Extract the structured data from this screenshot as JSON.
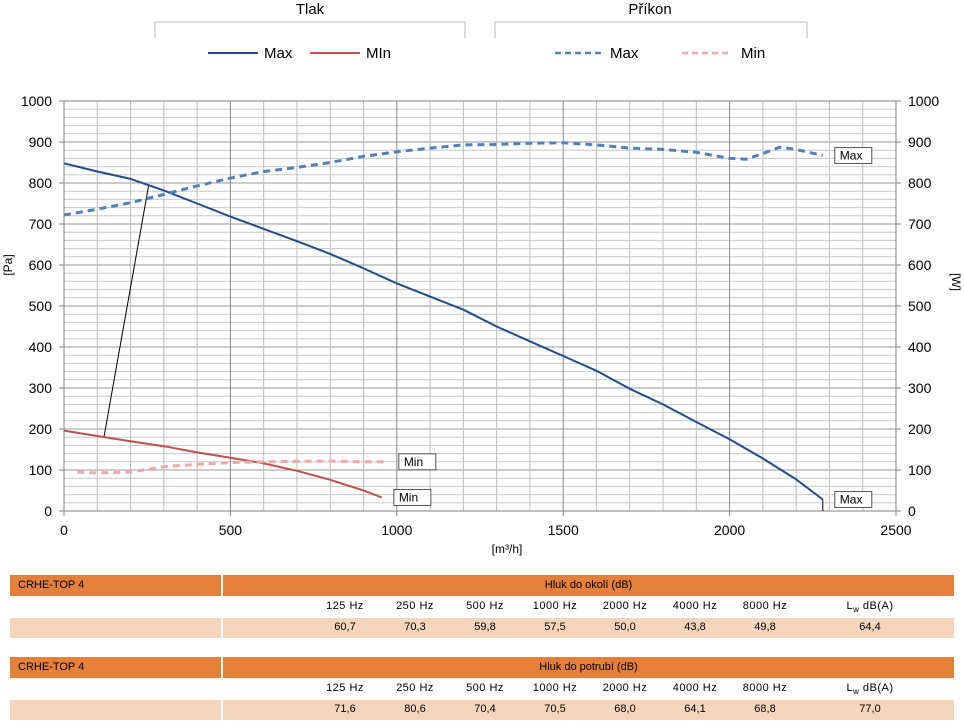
{
  "chart_data": {
    "type": "line",
    "legend_groups": [
      {
        "title": "Tlak",
        "items": [
          {
            "name": "Max",
            "color": "#1f4e8c",
            "style": "solid"
          },
          {
            "name": "MIn",
            "color": "#c0504d",
            "style": "solid"
          }
        ]
      },
      {
        "title": "Příkon",
        "items": [
          {
            "name": "Max",
            "color": "#4f81bd",
            "style": "dashed"
          },
          {
            "name": "Min",
            "color": "#f0a8a8",
            "style": "dashed"
          }
        ]
      }
    ],
    "xlabel": "[m³/h]",
    "ylabel_left": "[Pa]",
    "ylabel_right": "[W]",
    "xlim": [
      0,
      2500
    ],
    "ylim": [
      0,
      1000
    ],
    "x_ticks": [
      0,
      500,
      1000,
      1500,
      2000,
      2500
    ],
    "y_ticks": [
      0,
      100,
      200,
      300,
      400,
      500,
      600,
      700,
      800,
      900,
      1000
    ],
    "grid": true,
    "series": [
      {
        "group": "Tlak",
        "axis": "left",
        "color": "#1f4e8c",
        "dash": false,
        "label": "Max",
        "points": [
          [
            0,
            848
          ],
          [
            100,
            828
          ],
          [
            200,
            810
          ],
          [
            300,
            782
          ],
          [
            400,
            750
          ],
          [
            500,
            718
          ],
          [
            600,
            688
          ],
          [
            700,
            658
          ],
          [
            800,
            627
          ],
          [
            900,
            592
          ],
          [
            1000,
            555
          ],
          [
            1100,
            523
          ],
          [
            1200,
            491
          ],
          [
            1300,
            450
          ],
          [
            1400,
            414
          ],
          [
            1500,
            378
          ],
          [
            1600,
            342
          ],
          [
            1700,
            298
          ],
          [
            1800,
            260
          ],
          [
            1900,
            217
          ],
          [
            2000,
            175
          ],
          [
            2100,
            128
          ],
          [
            2200,
            77
          ],
          [
            2280,
            28
          ]
        ]
      },
      {
        "group": "Tlak",
        "axis": "left",
        "color": "#c0504d",
        "dash": false,
        "label": "Min",
        "points": [
          [
            0,
            196
          ],
          [
            100,
            183
          ],
          [
            200,
            170
          ],
          [
            300,
            158
          ],
          [
            400,
            143
          ],
          [
            500,
            130
          ],
          [
            600,
            116
          ],
          [
            700,
            98
          ],
          [
            800,
            76
          ],
          [
            900,
            50
          ],
          [
            955,
            33
          ]
        ]
      },
      {
        "group": "Příkon",
        "axis": "right",
        "color": "#4f81bd",
        "dash": true,
        "label": "Max",
        "points": [
          [
            0,
            722
          ],
          [
            100,
            736
          ],
          [
            200,
            752
          ],
          [
            300,
            772
          ],
          [
            400,
            793
          ],
          [
            500,
            812
          ],
          [
            600,
            828
          ],
          [
            700,
            838
          ],
          [
            800,
            850
          ],
          [
            900,
            865
          ],
          [
            1000,
            876
          ],
          [
            1100,
            885
          ],
          [
            1200,
            893
          ],
          [
            1300,
            894
          ],
          [
            1400,
            897
          ],
          [
            1500,
            898
          ],
          [
            1600,
            893
          ],
          [
            1700,
            885
          ],
          [
            1800,
            882
          ],
          [
            1900,
            875
          ],
          [
            2000,
            860
          ],
          [
            2050,
            858
          ],
          [
            2100,
            872
          ],
          [
            2150,
            887
          ],
          [
            2200,
            882
          ],
          [
            2280,
            867
          ]
        ]
      },
      {
        "group": "Příkon",
        "axis": "right",
        "color": "#f0a8a8",
        "dash": true,
        "label": "Min",
        "points": [
          [
            40,
            95
          ],
          [
            100,
            93
          ],
          [
            200,
            95
          ],
          [
            300,
            108
          ],
          [
            400,
            114
          ],
          [
            500,
            118
          ],
          [
            600,
            120
          ],
          [
            700,
            121
          ],
          [
            800,
            122
          ],
          [
            900,
            120
          ],
          [
            970,
            120
          ]
        ]
      }
    ],
    "annotations": [
      {
        "text": "Max",
        "series": 2
      },
      {
        "text": "Max",
        "series": 0
      },
      {
        "text": "Min",
        "series": 3
      },
      {
        "text": "Min",
        "series": 1
      }
    ],
    "operating_line": {
      "from": [
        120,
        180
      ],
      "to": [
        255,
        797
      ]
    }
  },
  "noise_tables": [
    {
      "model": "CRHE-TOP 4",
      "title": "Hluk do okolí (dB)",
      "freqs": [
        "125 Hz",
        "250 Hz",
        "500 Hz",
        "1000 Hz",
        "2000 Hz",
        "4000 Hz",
        "8000 Hz"
      ],
      "lw_label": "L",
      "lw_sub": "w",
      "lw_unit": "dB(A)",
      "values": [
        "60,7",
        "70,3",
        "59,8",
        "57,5",
        "50,0",
        "43,8",
        "49,8",
        "64,4"
      ]
    },
    {
      "model": "CRHE-TOP 4",
      "title": "Hluk do potrubí (dB)",
      "freqs": [
        "125 Hz",
        "250 Hz",
        "500 Hz",
        "1000 Hz",
        "2000 Hz",
        "4000 Hz",
        "8000 Hz"
      ],
      "lw_label": "L",
      "lw_sub": "w",
      "lw_unit": "dB(A)",
      "values": [
        "71,6",
        "80,6",
        "70,4",
        "70,5",
        "68,0",
        "64,1",
        "68,8",
        "77,0"
      ]
    }
  ]
}
